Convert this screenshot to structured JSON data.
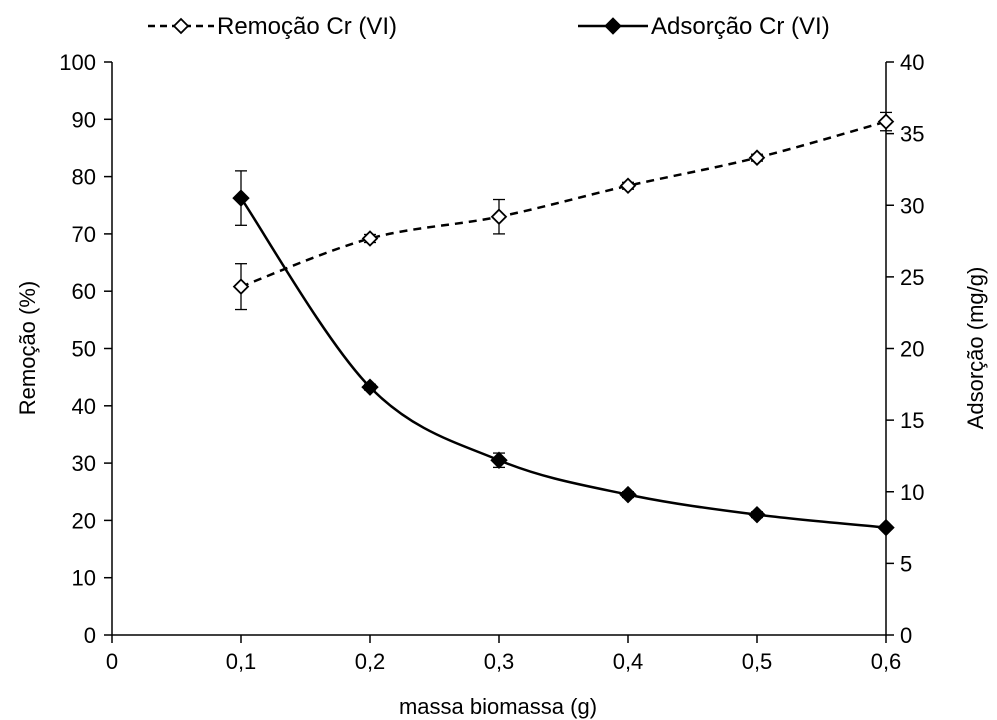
{
  "chart_data": {
    "type": "line",
    "x": [
      0.1,
      0.2,
      0.3,
      0.4,
      0.5,
      0.6
    ],
    "xlim": [
      0,
      0.6
    ],
    "xticks": [
      "0",
      "0,1",
      "0,2",
      "0,3",
      "0,4",
      "0,5",
      "0,6"
    ],
    "xlabel": "massa biomassa (g)",
    "ylabel": "Remoção (%)",
    "ylim": [
      0,
      100
    ],
    "yticks": [
      "0",
      "10",
      "20",
      "30",
      "40",
      "50",
      "60",
      "70",
      "80",
      "90",
      "100"
    ],
    "y2label": "Adsorção (mg/g)",
    "y2lim": [
      0,
      40
    ],
    "y2ticks": [
      "0",
      "5",
      "10",
      "15",
      "20",
      "25",
      "30",
      "35",
      "40"
    ],
    "grid": false,
    "legend_position": "top",
    "series": [
      {
        "name": "Remoção Cr (VI)",
        "axis": "left",
        "line_style": "dashed",
        "marker": "open-diamond",
        "values": [
          60.8,
          69.2,
          73.0,
          78.4,
          83.3,
          89.6
        ],
        "errors": [
          4.0,
          0.7,
          3.0,
          0.6,
          0.6,
          1.6
        ]
      },
      {
        "name": "Adsorção Cr (VI)",
        "axis": "right",
        "line_style": "solid",
        "marker": "filled-diamond",
        "values": [
          30.5,
          17.3,
          12.2,
          9.8,
          8.4,
          7.5
        ],
        "errors": [
          1.9,
          0.2,
          0.5,
          0.2,
          0.2,
          0.1
        ]
      }
    ],
    "colors": {
      "line": "#000000",
      "background": "#ffffff"
    }
  }
}
